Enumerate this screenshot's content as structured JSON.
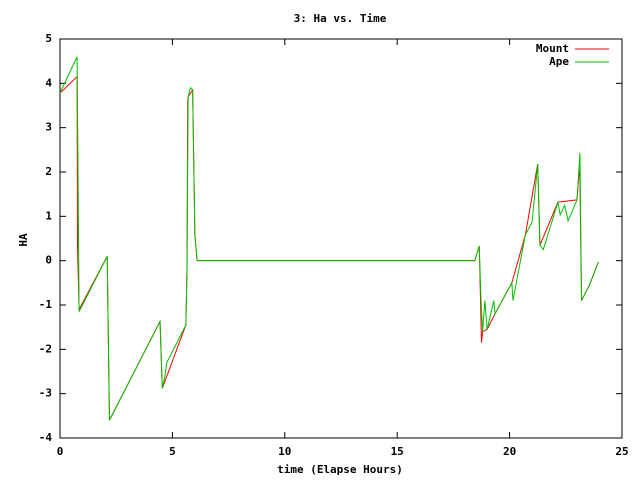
{
  "chart_data": {
    "type": "line",
    "title": "3: Ha vs. Time",
    "x_label": "time (Elapse Hours)",
    "y_label": "HA",
    "xlim": [
      0,
      25
    ],
    "xticks": [
      0,
      5,
      10,
      15,
      20,
      25
    ],
    "ylim": [
      -4,
      5
    ],
    "yticks": [
      -4,
      -3,
      -2,
      -1,
      0,
      1,
      2,
      3,
      4,
      5
    ],
    "legend": "top-right",
    "series": [
      {
        "name": "Mount",
        "color": "#ff0000",
        "x": [
          0,
          0.76,
          0.78,
          0.85,
          2.1,
          2.2,
          4.45,
          4.55,
          5.6,
          5.65,
          5.68,
          5.7,
          5.9,
          6.0,
          6.1,
          18.45,
          18.65,
          18.75,
          18.8,
          19.0,
          19.35,
          20.1,
          20.7,
          21.25,
          21.35,
          22.15,
          23.0,
          23.1,
          23.13,
          23.2,
          23.55,
          23.95
        ],
        "values": [
          3.78,
          4.15,
          0.3,
          -1.1,
          0.1,
          -3.6,
          -1.37,
          -2.88,
          -1.45,
          -0.17,
          3.6,
          3.7,
          3.85,
          0.58,
          0,
          0,
          0.33,
          -1.85,
          -1.6,
          -1.55,
          -1.2,
          -0.5,
          0.58,
          2.18,
          0.35,
          1.32,
          1.37,
          2.1,
          1.8,
          -0.9,
          -0.55,
          -0.03
        ]
      },
      {
        "name": "Ape",
        "color": "#00c000",
        "x": [
          0,
          0.76,
          0.85,
          2.1,
          2.2,
          4.45,
          4.55,
          4.65,
          4.75,
          5.6,
          5.65,
          5.7,
          5.8,
          5.9,
          6.0,
          6.1,
          18.45,
          18.65,
          18.73,
          18.8,
          18.9,
          19.0,
          19.3,
          19.35,
          20.1,
          20.15,
          20.7,
          21.0,
          21.25,
          21.35,
          21.5,
          22.15,
          22.25,
          22.45,
          22.55,
          22.6,
          23.0,
          23.13,
          23.2,
          23.55,
          23.95
        ],
        "values": [
          3.78,
          4.6,
          -1.15,
          0.1,
          -3.6,
          -1.37,
          -2.88,
          -2.65,
          -2.3,
          -1.45,
          -0.17,
          3.7,
          3.9,
          3.85,
          0.58,
          0,
          0,
          0.33,
          -0.9,
          -1.6,
          -0.9,
          -1.55,
          -0.9,
          -1.2,
          -0.5,
          -0.9,
          0.58,
          0.87,
          2.18,
          0.35,
          0.25,
          1.32,
          1.03,
          1.25,
          1.03,
          0.9,
          1.37,
          2.43,
          -0.9,
          -0.55,
          -0.03
        ]
      }
    ]
  }
}
